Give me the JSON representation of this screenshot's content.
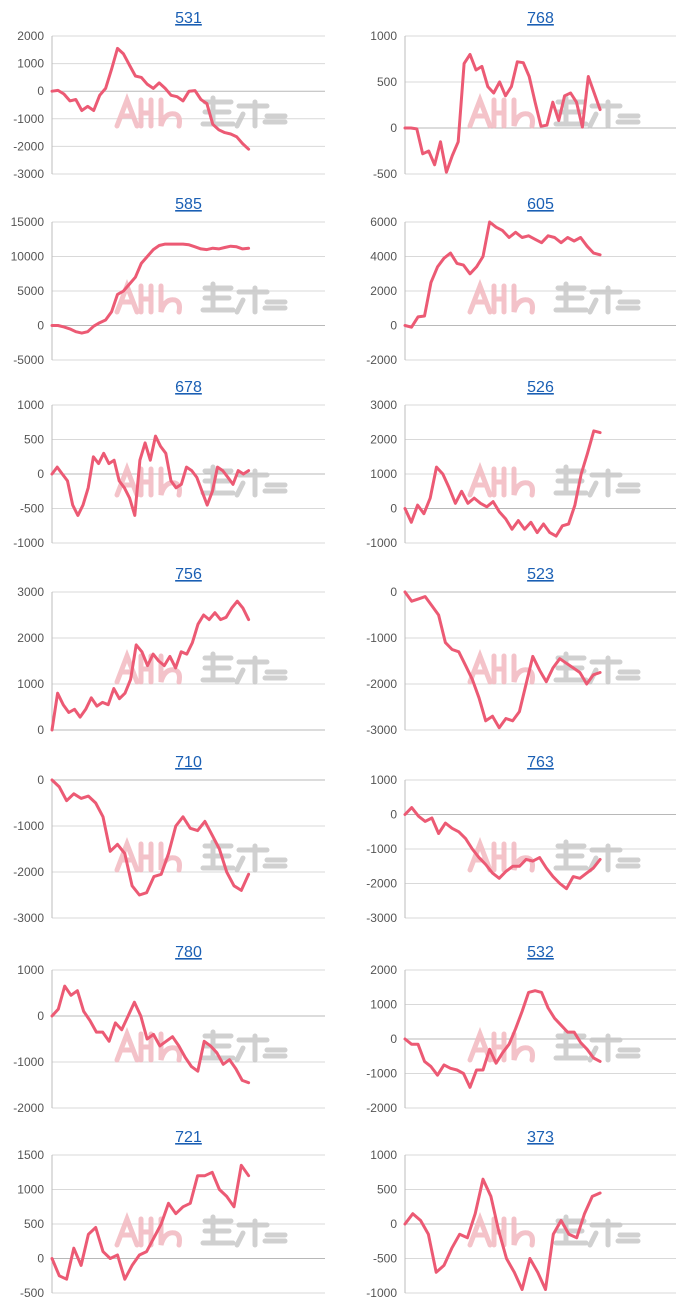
{
  "style": {
    "line_color": "#ec5a74",
    "grid_color": "#d9d9d9",
    "axis_color": "#bdbdbd",
    "tick_color": "#555555",
    "title_color": "#1a5fb4",
    "watermark_color": "#f2b8c0",
    "watermark2_color": "#c8c8c8"
  },
  "chart_data": [
    {
      "type": "line",
      "title": "531",
      "ylim": [
        -3000,
        2000
      ],
      "yticks": [
        2000,
        1000,
        0,
        -1000,
        -2000,
        -3000
      ],
      "values": [
        0,
        30,
        -100,
        -350,
        -300,
        -700,
        -550,
        -700,
        -150,
        100,
        800,
        1550,
        1350,
        950,
        550,
        500,
        250,
        100,
        300,
        100,
        -150,
        -200,
        -350,
        0,
        20,
        -300,
        -450,
        -1200,
        -1400,
        -1500,
        -1550,
        -1650,
        -1900,
        -2100
      ]
    },
    {
      "type": "line",
      "title": "768",
      "ylim": [
        -500,
        1000
      ],
      "yticks": [
        1000,
        500,
        0,
        -500
      ],
      "values": [
        0,
        0,
        -10,
        -280,
        -250,
        -400,
        -150,
        -480,
        -300,
        -150,
        700,
        800,
        630,
        670,
        450,
        380,
        500,
        350,
        450,
        720,
        710,
        560,
        280,
        20,
        30,
        280,
        80,
        350,
        380,
        280,
        10,
        560,
        380,
        200
      ]
    },
    {
      "type": "line",
      "title": "585",
      "ylim": [
        -5000,
        15000
      ],
      "yticks": [
        15000,
        10000,
        5000,
        0,
        -5000
      ],
      "values": [
        0,
        0,
        -200,
        -500,
        -900,
        -1100,
        -900,
        -100,
        400,
        800,
        2000,
        4500,
        5000,
        6000,
        7000,
        9000,
        10000,
        11000,
        11600,
        11800,
        11800,
        11800,
        11800,
        11700,
        11400,
        11100,
        11000,
        11200,
        11100,
        11300,
        11500,
        11400,
        11100,
        11200
      ]
    },
    {
      "type": "line",
      "title": "605",
      "ylim": [
        -2000,
        6000
      ],
      "yticks": [
        6000,
        4000,
        2000,
        0,
        -2000
      ],
      "values": [
        0,
        -100,
        500,
        550,
        2500,
        3400,
        3900,
        4200,
        3600,
        3500,
        3000,
        3400,
        4000,
        6000,
        5700,
        5500,
        5100,
        5400,
        5100,
        5200,
        5000,
        4800,
        5200,
        5100,
        4800,
        5100,
        4900,
        5100,
        4600,
        4200,
        4100
      ]
    },
    {
      "type": "line",
      "title": "678",
      "ylim": [
        -1000,
        1000
      ],
      "yticks": [
        1000,
        500,
        0,
        -500,
        -1000
      ],
      "values": [
        0,
        100,
        0,
        -100,
        -450,
        -600,
        -450,
        -200,
        250,
        150,
        300,
        150,
        200,
        -100,
        -200,
        -350,
        -600,
        200,
        450,
        200,
        550,
        400,
        300,
        -100,
        -200,
        -150,
        100,
        50,
        -50,
        -250,
        -450,
        -250,
        100,
        50,
        -50,
        -150,
        50,
        0,
        50
      ]
    },
    {
      "type": "line",
      "title": "526",
      "ylim": [
        -1000,
        3000
      ],
      "yticks": [
        3000,
        2000,
        1000,
        0,
        -1000
      ],
      "values": [
        0,
        -400,
        100,
        -150,
        300,
        1200,
        1000,
        600,
        150,
        500,
        150,
        300,
        150,
        50,
        200,
        -100,
        -300,
        -600,
        -350,
        -600,
        -400,
        -700,
        -450,
        -700,
        -800,
        -500,
        -450,
        100,
        1000,
        1600,
        2250,
        2200
      ]
    },
    {
      "type": "line",
      "title": "756",
      "ylim": [
        0,
        3000
      ],
      "yticks": [
        3000,
        2000,
        1000,
        0
      ],
      "values": [
        0,
        800,
        550,
        380,
        450,
        280,
        450,
        700,
        520,
        600,
        550,
        900,
        680,
        800,
        1100,
        1850,
        1700,
        1400,
        1650,
        1500,
        1400,
        1600,
        1350,
        1700,
        1650,
        1900,
        2300,
        2500,
        2400,
        2550,
        2400,
        2450,
        2650,
        2800,
        2650,
        2400
      ]
    },
    {
      "type": "line",
      "title": "523",
      "ylim": [
        -3000,
        0
      ],
      "yticks": [
        0,
        -1000,
        -2000,
        -3000
      ],
      "values": [
        0,
        -200,
        -150,
        -100,
        -300,
        -500,
        -1100,
        -1250,
        -1300,
        -1600,
        -1900,
        -2300,
        -2800,
        -2700,
        -2950,
        -2750,
        -2800,
        -2600,
        -2000,
        -1400,
        -1700,
        -1950,
        -1650,
        -1450,
        -1550,
        -1650,
        -1750,
        -2000,
        -1800,
        -1750
      ]
    },
    {
      "type": "line",
      "title": "710",
      "ylim": [
        -3000,
        0
      ],
      "yticks": [
        0,
        -1000,
        -2000,
        -3000
      ],
      "values": [
        0,
        -150,
        -450,
        -300,
        -400,
        -350,
        -500,
        -800,
        -1550,
        -1400,
        -1600,
        -2300,
        -2500,
        -2450,
        -2100,
        -2050,
        -1600,
        -1000,
        -800,
        -1050,
        -1100,
        -900,
        -1200,
        -1500,
        -2000,
        -2300,
        -2400,
        -2050
      ]
    },
    {
      "type": "line",
      "title": "763",
      "ylim": [
        -3000,
        1000
      ],
      "yticks": [
        1000,
        0,
        -1000,
        -2000,
        -3000
      ],
      "values": [
        0,
        200,
        -50,
        -200,
        -100,
        -550,
        -250,
        -400,
        -500,
        -700,
        -1000,
        -1250,
        -1450,
        -1700,
        -1850,
        -1650,
        -1500,
        -1500,
        -1300,
        -1350,
        -1250,
        -1550,
        -1800,
        -2000,
        -2150,
        -1800,
        -1850,
        -1700,
        -1550,
        -1300
      ]
    },
    {
      "type": "line",
      "title": "780",
      "ylim": [
        -2000,
        1000
      ],
      "yticks": [
        1000,
        0,
        -1000,
        -2000
      ],
      "values": [
        0,
        150,
        650,
        450,
        550,
        100,
        -100,
        -350,
        -350,
        -550,
        -150,
        -300,
        0,
        300,
        0,
        -500,
        -400,
        -650,
        -550,
        -450,
        -650,
        -900,
        -1100,
        -1200,
        -550,
        -650,
        -800,
        -1050,
        -950,
        -1150,
        -1400,
        -1450
      ]
    },
    {
      "type": "line",
      "title": "532",
      "ylim": [
        -2000,
        2000
      ],
      "yticks": [
        2000,
        1000,
        0,
        -1000,
        -2000
      ],
      "values": [
        0,
        -150,
        -150,
        -650,
        -800,
        -1050,
        -750,
        -850,
        -900,
        -1000,
        -1400,
        -900,
        -900,
        -300,
        -700,
        -400,
        -150,
        300,
        800,
        1350,
        1400,
        1350,
        900,
        600,
        400,
        200,
        200,
        -100,
        -300,
        -550,
        -650
      ]
    },
    {
      "type": "line",
      "title": "721",
      "ylim": [
        -500,
        1500
      ],
      "yticks": [
        1500,
        1000,
        500,
        0,
        -500
      ],
      "values": [
        0,
        -250,
        -300,
        150,
        -100,
        350,
        450,
        100,
        0,
        50,
        -300,
        -100,
        50,
        100,
        300,
        500,
        800,
        650,
        750,
        800,
        1200,
        1200,
        1250,
        1000,
        900,
        750,
        1350,
        1200
      ]
    },
    {
      "type": "line",
      "title": "373",
      "ylim": [
        -1000,
        1000
      ],
      "yticks": [
        1000,
        500,
        0,
        -500,
        -1000
      ],
      "values": [
        0,
        150,
        50,
        -150,
        -700,
        -600,
        -350,
        -150,
        -200,
        150,
        650,
        400,
        -100,
        -500,
        -700,
        -950,
        -500,
        -700,
        -950,
        -150,
        50,
        -150,
        -200,
        150,
        400,
        450
      ]
    }
  ]
}
